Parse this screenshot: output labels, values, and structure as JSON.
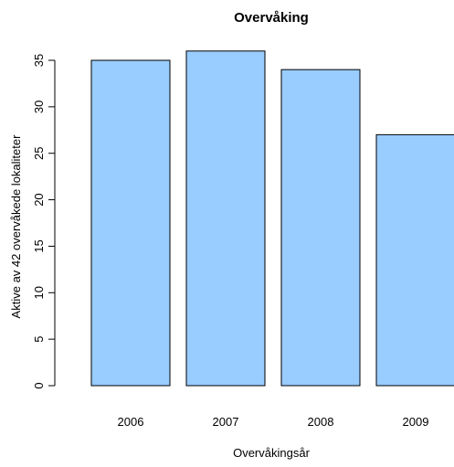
{
  "chart_data": {
    "type": "bar",
    "title": "Overvåking",
    "xlabel": "Overvåkingsår",
    "ylabel": "Aktive av 42 overvåkede lokaliteter",
    "categories": [
      "2006",
      "2007",
      "2008",
      "2009"
    ],
    "values": [
      35,
      36,
      34,
      27
    ],
    "ylim": [
      0,
      35
    ],
    "yticks": [
      0,
      5,
      10,
      15,
      20,
      25,
      30,
      35
    ],
    "bar_color": "#99CCFF",
    "grid": false,
    "legend": "none"
  }
}
